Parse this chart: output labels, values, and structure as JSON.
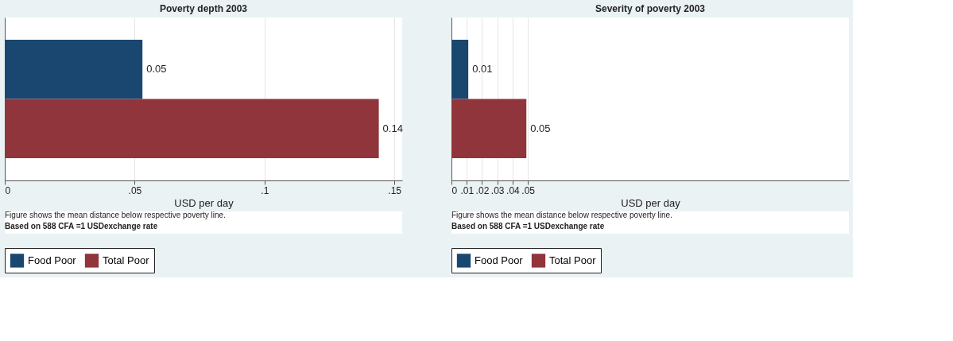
{
  "chart_data": [
    {
      "type": "bar",
      "orientation": "horizontal",
      "title": "Poverty depth 2003",
      "xlabel": "USD per day",
      "categories": [
        null
      ],
      "series": [
        {
          "name": "Food Poor",
          "color": "#1a476f",
          "values": [
            0.053
          ],
          "value_labels": [
            "0.05"
          ]
        },
        {
          "name": "Total Poor",
          "color": "#90353b",
          "values": [
            0.144
          ],
          "value_labels": [
            "0.14"
          ]
        }
      ],
      "xlim": [
        0,
        0.153
      ],
      "xticks": [
        {
          "value": 0,
          "label": "0"
        },
        {
          "value": 0.05,
          "label": ".05"
        },
        {
          "value": 0.1,
          "label": ".1"
        },
        {
          "value": 0.15,
          "label": ".15"
        }
      ],
      "grid": "x",
      "legend": "bottom",
      "tick_labels": "x",
      "annotations": [
        "Figure shows the mean distance below respective poverty line.",
        "Based on 588 CFA =1 USDexchange rate"
      ]
    },
    {
      "type": "bar",
      "orientation": "horizontal",
      "title": "Severity of poverty 2003",
      "xlabel": "USD per day",
      "categories": [
        null
      ],
      "series": [
        {
          "name": "Food Poor",
          "color": "#1a476f",
          "values": [
            0.011
          ],
          "value_labels": [
            "0.01"
          ]
        },
        {
          "name": "Total Poor",
          "color": "#90353b",
          "values": [
            0.049
          ],
          "value_labels": [
            "0.05"
          ]
        }
      ],
      "xlim": [
        0,
        0.26
      ],
      "xticks": [
        {
          "value": 0,
          "label": "0"
        },
        {
          "value": 0.01,
          "label": ".01"
        },
        {
          "value": 0.02,
          "label": ".02"
        },
        {
          "value": 0.03,
          "label": ".03"
        },
        {
          "value": 0.04,
          "label": ".04"
        },
        {
          "value": 0.05,
          "label": ".05"
        }
      ],
      "grid": "x",
      "legend": "bottom",
      "tick_labels": "x",
      "annotations": [
        "Figure shows the mean distance below respective poverty line.",
        "Based on 588 CFA =1 USDexchange rate"
      ]
    }
  ]
}
